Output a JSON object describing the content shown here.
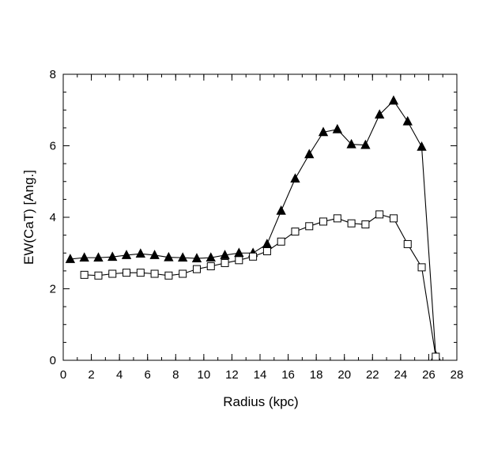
{
  "chart_data": {
    "type": "line",
    "title": "",
    "xlabel": "Radius (kpc)",
    "ylabel": "EW(CaT) [Ang.]",
    "xlim": [
      0,
      28
    ],
    "ylim": [
      0,
      8
    ],
    "xticks": [
      0,
      2,
      4,
      6,
      8,
      10,
      12,
      14,
      16,
      18,
      20,
      22,
      24,
      26,
      28
    ],
    "yticks": [
      0,
      2,
      4,
      6,
      8
    ],
    "x_minor_step": 1,
    "y_minor_step": 0.5,
    "grid": false,
    "series": [
      {
        "name": "filled triangles",
        "marker": "triangle-filled",
        "color": "#000000",
        "x": [
          0.5,
          1.5,
          2.5,
          3.5,
          4.5,
          5.5,
          6.5,
          7.5,
          8.5,
          9.5,
          10.5,
          11.5,
          12.5,
          13.5,
          14.5,
          15.5,
          16.5,
          17.5,
          18.5,
          19.5,
          20.5,
          21.5,
          22.5,
          23.5,
          24.5,
          25.5,
          26.5
        ],
        "values": [
          2.83,
          2.87,
          2.87,
          2.89,
          2.94,
          2.98,
          2.94,
          2.88,
          2.87,
          2.85,
          2.87,
          2.94,
          3.0,
          3.0,
          3.25,
          4.18,
          5.08,
          5.76,
          6.38,
          6.46,
          6.04,
          6.02,
          6.87,
          7.26,
          6.68,
          5.97,
          0.12
        ]
      },
      {
        "name": "open squares",
        "marker": "square-open",
        "color": "#000000",
        "x": [
          1.5,
          2.5,
          3.5,
          4.5,
          5.5,
          6.5,
          7.5,
          8.5,
          9.5,
          10.5,
          11.5,
          12.5,
          13.5,
          14.5,
          15.5,
          16.5,
          17.5,
          18.5,
          19.5,
          20.5,
          21.5,
          22.5,
          23.5,
          24.5,
          25.5,
          26.5
        ],
        "values": [
          2.39,
          2.37,
          2.42,
          2.45,
          2.45,
          2.42,
          2.37,
          2.42,
          2.55,
          2.63,
          2.72,
          2.8,
          2.9,
          3.05,
          3.32,
          3.6,
          3.75,
          3.88,
          3.97,
          3.83,
          3.8,
          4.08,
          3.97,
          3.25,
          2.6,
          0.1
        ]
      }
    ]
  }
}
